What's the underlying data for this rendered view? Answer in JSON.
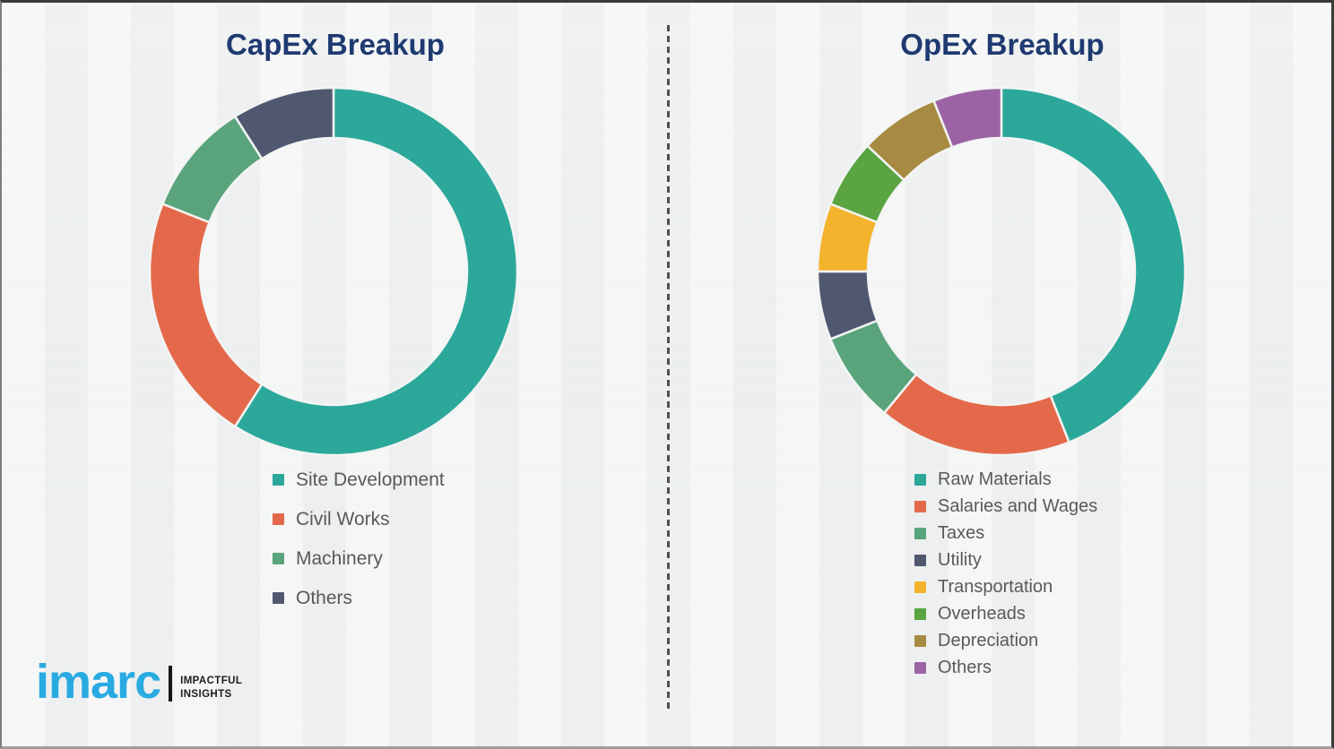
{
  "chart_data": [
    {
      "type": "donut",
      "title": "CapEx Breakup",
      "categories": [
        "Site Development",
        "Civil Works",
        "Machinery",
        "Others"
      ],
      "values": [
        59,
        22,
        10,
        9
      ],
      "colors": [
        "#2ba89a",
        "#e3694a",
        "#5aa47c",
        "#505870"
      ],
      "data_labels_shown": false,
      "values_are": "percent share estimated from arc angles",
      "start_angle_deg": 0,
      "direction": "clockwise",
      "legend_position": "below-chart-left"
    },
    {
      "type": "donut",
      "title": "OpEx Breakup",
      "categories": [
        "Raw Materials",
        "Salaries and Wages",
        "Taxes",
        "Utility",
        "Transportation",
        "Overheads",
        "Depreciation",
        "Others"
      ],
      "values": [
        44,
        17,
        8,
        6,
        6,
        6,
        7,
        6
      ],
      "colors": [
        "#2ba89a",
        "#e3694a",
        "#5aa47c",
        "#505870",
        "#f4b32c",
        "#5aa441",
        "#a78b42",
        "#9b63a4"
      ],
      "data_labels_shown": false,
      "values_are": "percent share estimated from arc angles",
      "start_angle_deg": 0,
      "direction": "clockwise",
      "legend_position": "below-chart-left"
    }
  ],
  "theme": {
    "background": "#f1f2f2",
    "title_color": "#1e3a70",
    "legend_text_color": "#595959",
    "divider_color": "#4f4f4f",
    "segment_gap_color": "#f3f4f4"
  },
  "logo": {
    "brand": "imarc",
    "tagline_line1": "IMPACTFUL",
    "tagline_line2": "INSIGHTS",
    "brand_color": "#29abe2"
  }
}
